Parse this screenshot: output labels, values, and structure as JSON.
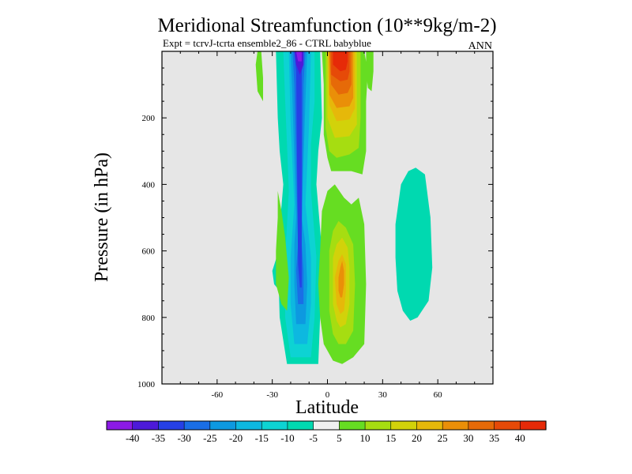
{
  "chart_data": {
    "type": "contour",
    "title": "Meridional Streamfunction (10**9kg/m-2)",
    "subtitle": "Expt = tcrvJ-tcrta  ensemble2_86 - CTRL babyblue",
    "season": "ANN",
    "xlabel": "Latitude",
    "ylabel": "Pressure (in hPa)",
    "xlim": [
      -90,
      90
    ],
    "ylim": [
      1000,
      0
    ],
    "y_reversed": true,
    "x_ticks": [
      "-60",
      "-30",
      "0",
      "30",
      "60"
    ],
    "x_tick_values": [
      -60,
      -30,
      0,
      30,
      60
    ],
    "y_ticks": [
      "200",
      "400",
      "600",
      "800",
      "1000"
    ],
    "y_tick_values": [
      200,
      400,
      600,
      800,
      1000
    ],
    "plot_background": "#e6e6e6",
    "colorbar": {
      "labels": [
        "-40",
        "-35",
        "-30",
        "-25",
        "-20",
        "-15",
        "-10",
        "-5",
        "5",
        "10",
        "15",
        "20",
        "25",
        "30",
        "35",
        "40"
      ],
      "colors": [
        "#8c1ae6",
        "#4d1ad9",
        "#2640e6",
        "#1a6ee6",
        "#0d99e0",
        "#0db8e0",
        "#0dd3d3",
        "#00d9b0",
        "#f0f0f0",
        "#66dd22",
        "#a6dd11",
        "#d2d20a",
        "#e6b80a",
        "#ea8f08",
        "#e66a08",
        "#e64a08",
        "#e62a08"
      ]
    },
    "regions": [
      {
        "level": "-5",
        "points": [
          [
            -22,
            940
          ],
          [
            -26,
            800
          ],
          [
            -27,
            600
          ],
          [
            -24,
            400
          ],
          [
            -26,
            300
          ],
          [
            -27,
            200
          ],
          [
            -28,
            0
          ],
          [
            -4,
            0
          ],
          [
            -3,
            200
          ],
          [
            -5,
            300
          ],
          [
            -6,
            400
          ],
          [
            -3,
            600
          ],
          [
            -4,
            800
          ],
          [
            -5,
            940
          ]
        ]
      },
      {
        "level": "-10",
        "points": [
          [
            -20,
            920
          ],
          [
            -23,
            800
          ],
          [
            -23,
            620
          ],
          [
            -21,
            420
          ],
          [
            -22,
            280
          ],
          [
            -23,
            150
          ],
          [
            -24,
            0
          ],
          [
            -7,
            0
          ],
          [
            -7,
            150
          ],
          [
            -9,
            280
          ],
          [
            -9,
            420
          ],
          [
            -6,
            620
          ],
          [
            -7,
            800
          ],
          [
            -9,
            920
          ]
        ]
      },
      {
        "level": "-15",
        "points": [
          [
            -18,
            880
          ],
          [
            -20,
            760
          ],
          [
            -20,
            620
          ],
          [
            -18,
            460
          ],
          [
            -20,
            220
          ],
          [
            -21,
            0
          ],
          [
            -9,
            0
          ],
          [
            -10,
            220
          ],
          [
            -12,
            460
          ],
          [
            -9,
            620
          ],
          [
            -9,
            760
          ],
          [
            -11,
            880
          ]
        ]
      },
      {
        "level": "-20",
        "points": [
          [
            -17,
            820
          ],
          [
            -18,
            700
          ],
          [
            -18,
            580
          ],
          [
            -17,
            500
          ],
          [
            -19,
            150
          ],
          [
            -20,
            0
          ],
          [
            -11,
            0
          ],
          [
            -12,
            150
          ],
          [
            -14,
            500
          ],
          [
            -12,
            580
          ],
          [
            -11,
            700
          ],
          [
            -12,
            820
          ]
        ]
      },
      {
        "level": "-25",
        "points": [
          [
            -16,
            760
          ],
          [
            -17,
            660
          ],
          [
            -16,
            580
          ],
          [
            -18,
            100
          ],
          [
            -19,
            0
          ],
          [
            -12,
            0
          ],
          [
            -13,
            100
          ],
          [
            -14,
            580
          ],
          [
            -13,
            660
          ],
          [
            -13,
            760
          ]
        ]
      },
      {
        "level": "-30",
        "points": [
          [
            -15,
            710
          ],
          [
            -16,
            640
          ],
          [
            -17,
            60
          ],
          [
            -18,
            0
          ],
          [
            -13,
            0
          ],
          [
            -14,
            60
          ],
          [
            -14,
            640
          ],
          [
            -14,
            710
          ]
        ]
      },
      {
        "level": "-35",
        "points": [
          [
            -18,
            0
          ],
          [
            -17,
            40
          ],
          [
            -15,
            70
          ],
          [
            -13,
            40
          ],
          [
            -13,
            0
          ]
        ]
      },
      {
        "level": "-40",
        "points": [
          [
            -17,
            0
          ],
          [
            -16,
            30
          ],
          [
            -14,
            30
          ],
          [
            -14,
            0
          ]
        ]
      },
      {
        "level": "-5",
        "points": [
          [
            -30,
            660
          ],
          [
            -26,
            590
          ],
          [
            -24,
            520
          ],
          [
            -24,
            440
          ],
          [
            -23,
            540
          ],
          [
            -22,
            640
          ],
          [
            -23,
            720
          ],
          [
            -26,
            720
          ],
          [
            -29,
            700
          ]
        ]
      },
      {
        "level": "5",
        "points": [
          [
            -38,
            0
          ],
          [
            -39,
            40
          ],
          [
            -38,
            120
          ],
          [
            -35,
            150
          ],
          [
            -35,
            80
          ],
          [
            -36,
            0
          ]
        ]
      },
      {
        "level": "5",
        "points": [
          [
            -27,
            420
          ],
          [
            -25,
            480
          ],
          [
            -23,
            560
          ],
          [
            -21,
            680
          ],
          [
            -22,
            780
          ],
          [
            -25,
            760
          ],
          [
            -28,
            700
          ],
          [
            -28,
            600
          ],
          [
            -27,
            500
          ]
        ]
      },
      {
        "level": "5",
        "points": [
          [
            -3,
            0
          ],
          [
            -2,
            100
          ],
          [
            -2,
            250
          ],
          [
            0,
            320
          ],
          [
            2,
            360
          ],
          [
            8,
            360
          ],
          [
            13,
            360
          ],
          [
            19,
            370
          ],
          [
            21,
            300
          ],
          [
            21,
            150
          ],
          [
            22,
            60
          ],
          [
            20,
            0
          ]
        ]
      },
      {
        "level": "10",
        "points": [
          [
            -1,
            0
          ],
          [
            -1,
            100
          ],
          [
            -1,
            230
          ],
          [
            1,
            300
          ],
          [
            5,
            320
          ],
          [
            12,
            310
          ],
          [
            17,
            290
          ],
          [
            18,
            200
          ],
          [
            18,
            100
          ],
          [
            18,
            0
          ]
        ]
      },
      {
        "level": "15",
        "points": [
          [
            0,
            0
          ],
          [
            0,
            200
          ],
          [
            4,
            260
          ],
          [
            12,
            255
          ],
          [
            16,
            220
          ],
          [
            16,
            100
          ],
          [
            16,
            0
          ]
        ]
      },
      {
        "level": "20",
        "points": [
          [
            0,
            0
          ],
          [
            1,
            160
          ],
          [
            5,
            210
          ],
          [
            12,
            205
          ],
          [
            15,
            170
          ],
          [
            15,
            0
          ]
        ]
      },
      {
        "level": "25",
        "points": [
          [
            1,
            0
          ],
          [
            1,
            130
          ],
          [
            5,
            170
          ],
          [
            12,
            165
          ],
          [
            14,
            140
          ],
          [
            14,
            0
          ]
        ]
      },
      {
        "level": "30",
        "points": [
          [
            1,
            0
          ],
          [
            2,
            100
          ],
          [
            6,
            130
          ],
          [
            11,
            125
          ],
          [
            13,
            100
          ],
          [
            13,
            0
          ]
        ]
      },
      {
        "level": "35",
        "points": [
          [
            2,
            0
          ],
          [
            2,
            70
          ],
          [
            7,
            90
          ],
          [
            11,
            85
          ],
          [
            12,
            60
          ],
          [
            12,
            0
          ]
        ]
      },
      {
        "level": "40",
        "points": [
          [
            3,
            0
          ],
          [
            3,
            40
          ],
          [
            7,
            60
          ],
          [
            10,
            55
          ],
          [
            11,
            30
          ],
          [
            11,
            0
          ]
        ]
      },
      {
        "level": "5",
        "points": [
          [
            -3,
            480
          ],
          [
            0,
            420
          ],
          [
            4,
            400
          ],
          [
            9,
            440
          ],
          [
            13,
            460
          ],
          [
            17,
            440
          ],
          [
            20,
            520
          ],
          [
            21,
            700
          ],
          [
            20,
            880
          ],
          [
            14,
            920
          ],
          [
            8,
            940
          ],
          [
            3,
            930
          ],
          [
            -2,
            880
          ],
          [
            -4,
            800
          ],
          [
            -5,
            700
          ],
          [
            -4,
            600
          ]
        ]
      },
      {
        "level": "10",
        "points": [
          [
            1,
            600
          ],
          [
            3,
            540
          ],
          [
            6,
            510
          ],
          [
            10,
            530
          ],
          [
            14,
            580
          ],
          [
            15,
            700
          ],
          [
            14,
            840
          ],
          [
            10,
            880
          ],
          [
            6,
            880
          ],
          [
            3,
            850
          ],
          [
            1,
            780
          ],
          [
            1,
            700
          ]
        ]
      },
      {
        "level": "15",
        "points": [
          [
            3,
            620
          ],
          [
            5,
            580
          ],
          [
            8,
            560
          ],
          [
            11,
            590
          ],
          [
            12,
            650
          ],
          [
            12,
            760
          ],
          [
            10,
            820
          ],
          [
            7,
            830
          ],
          [
            5,
            810
          ],
          [
            3,
            760
          ],
          [
            3,
            700
          ]
        ]
      },
      {
        "level": "20",
        "points": [
          [
            4,
            680
          ],
          [
            6,
            630
          ],
          [
            8,
            610
          ],
          [
            10,
            640
          ],
          [
            10,
            720
          ],
          [
            9,
            780
          ],
          [
            7,
            790
          ],
          [
            5,
            760
          ]
        ]
      },
      {
        "level": "25",
        "points": [
          [
            6,
            680
          ],
          [
            7,
            650
          ],
          [
            8,
            630
          ],
          [
            9,
            660
          ],
          [
            9,
            700
          ],
          [
            8,
            740
          ],
          [
            7,
            740
          ],
          [
            6,
            720
          ]
        ]
      },
      {
        "level": "5",
        "points": [
          [
            21,
            0
          ],
          [
            21,
            60
          ],
          [
            22,
            110
          ],
          [
            24,
            120
          ],
          [
            25,
            60
          ],
          [
            25,
            0
          ]
        ]
      },
      {
        "level": "-5",
        "points": [
          [
            37,
            520
          ],
          [
            40,
            400
          ],
          [
            44,
            360
          ],
          [
            48,
            350
          ],
          [
            53,
            370
          ],
          [
            56,
            500
          ],
          [
            57,
            650
          ],
          [
            55,
            750
          ],
          [
            49,
            800
          ],
          [
            45,
            810
          ],
          [
            41,
            780
          ],
          [
            38,
            720
          ],
          [
            37,
            620
          ]
        ]
      }
    ]
  }
}
